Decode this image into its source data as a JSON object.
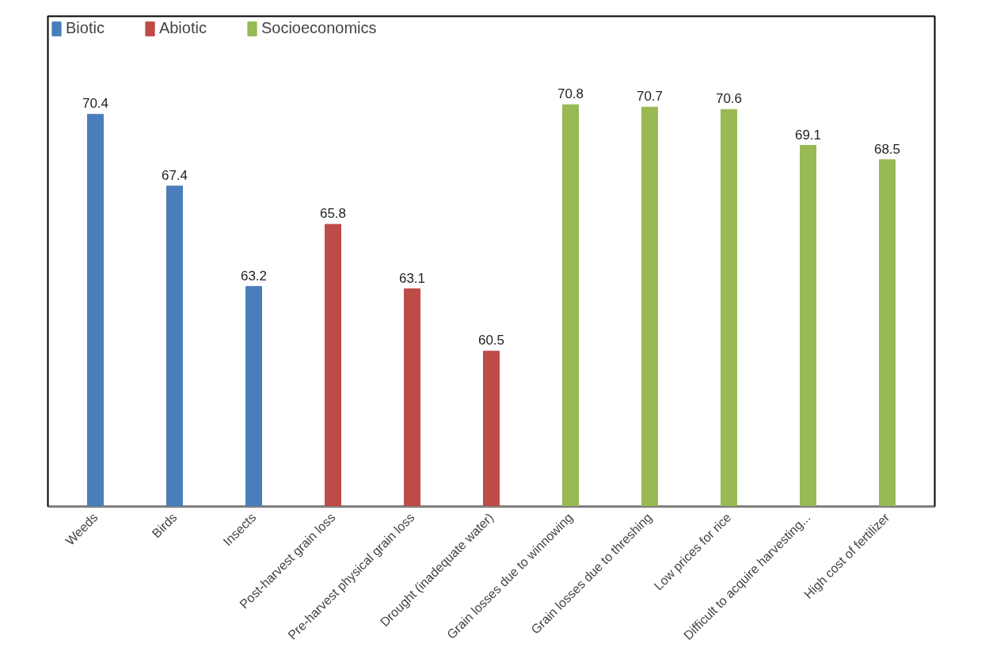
{
  "chart_data": {
    "type": "bar",
    "categories": [
      "Weeds",
      "Birds",
      "Insects",
      "Post-harvest grain loss",
      "Pre-harvest physical grain loss",
      "Drought (inadequate water)",
      "Grain losses due to winnowing",
      "Grain losses due to threshing",
      "Low prices for rice",
      "Difficult to acquire harvesting...",
      "High cost of fertilizer"
    ],
    "series": [
      {
        "name": "Biotic",
        "color": "#4a7ebb",
        "values": [
          70.4,
          67.4,
          63.2,
          null,
          null,
          null,
          null,
          null,
          null,
          null,
          null
        ]
      },
      {
        "name": "Abiotic",
        "color": "#be4b48",
        "values": [
          null,
          null,
          null,
          65.8,
          63.1,
          60.5,
          null,
          null,
          null,
          null,
          null
        ]
      },
      {
        "name": "Socioeconomics",
        "color": "#98b954",
        "values": [
          null,
          null,
          null,
          null,
          null,
          null,
          70.8,
          70.7,
          70.6,
          69.1,
          68.5
        ]
      }
    ],
    "ylim": [
      54,
      74.5
    ],
    "data_labels": true,
    "legend": "top",
    "grid": false
  }
}
